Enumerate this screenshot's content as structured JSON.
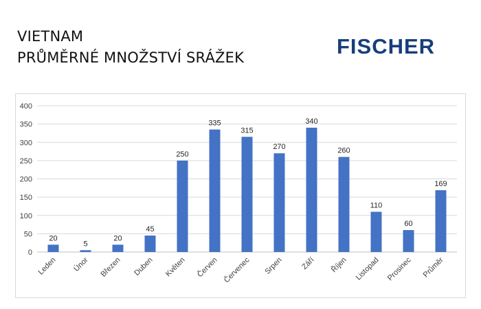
{
  "header": {
    "title_line1": "VIETNAM",
    "title_line2": "PRŮMĚRNÉ MNOŽSTVÍ SRÁŽEK",
    "logo_text": "FISCHER"
  },
  "colors": {
    "bar": "#4472c4",
    "grid": "#d9d9d9",
    "logo": "#173e7a"
  },
  "chart_data": {
    "type": "bar",
    "title": "",
    "xlabel": "",
    "ylabel": "",
    "categories": [
      "Leden",
      "Únor",
      "Březen",
      "Duben",
      "Květen",
      "Červen",
      "Červenec",
      "Srpen",
      "Září",
      "Říjen",
      "Listopad",
      "Prosinec",
      "Průměr"
    ],
    "values": [
      20,
      5,
      20,
      45,
      250,
      335,
      315,
      270,
      340,
      260,
      110,
      60,
      169
    ],
    "ylim": [
      0,
      400
    ],
    "yticks": [
      0,
      50,
      100,
      150,
      200,
      250,
      300,
      350,
      400
    ],
    "grid": true,
    "legend": "none",
    "data_labels": true
  }
}
